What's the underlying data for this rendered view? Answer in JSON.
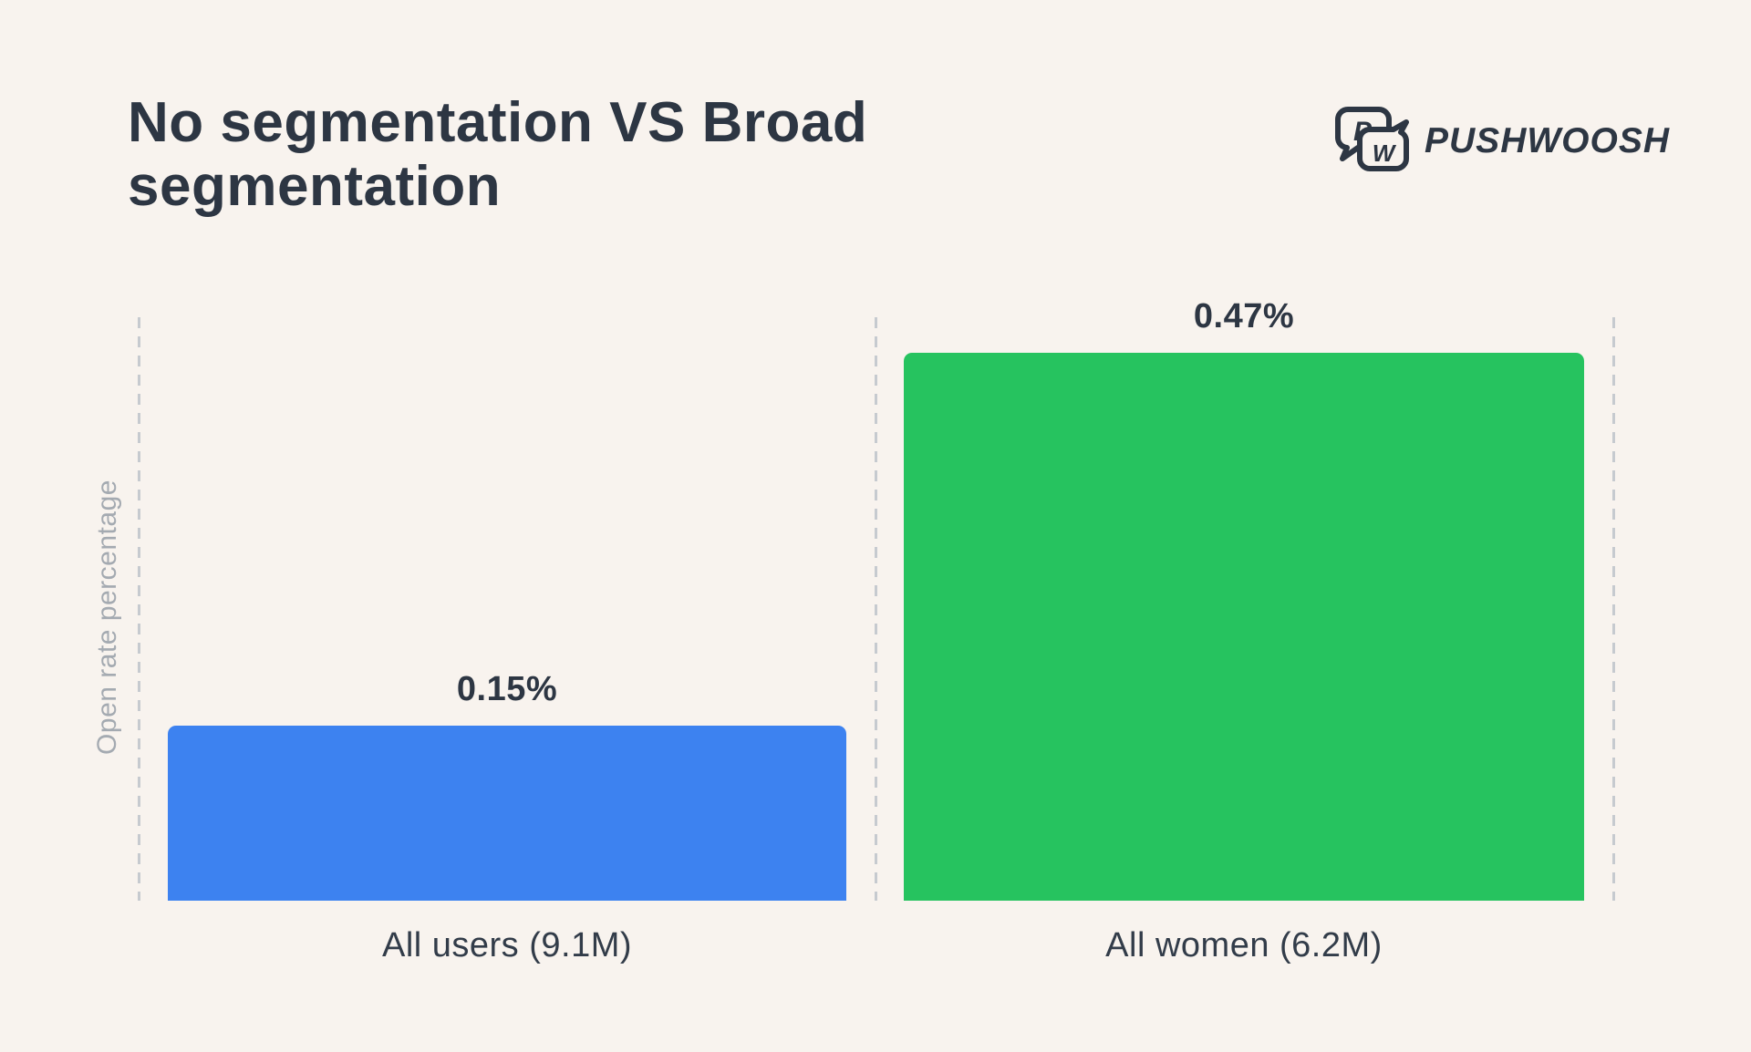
{
  "page": {
    "background": "#f8f3ee"
  },
  "header": {
    "title": "No segmentation VS Broad segmentation"
  },
  "logo": {
    "brand": "PUSHWOOSH",
    "icon_letters": {
      "p": "P",
      "w": "W"
    },
    "color": "#2d3643"
  },
  "chart_data": {
    "type": "bar",
    "title": "No segmentation VS Broad segmentation",
    "categories": [
      "All users (9.1M)",
      "All women (6.2M)"
    ],
    "values": [
      0.15,
      0.47
    ],
    "value_labels": [
      "0.15%",
      "0.47%"
    ],
    "bar_colors": [
      "#3d82f0",
      "#26c35f"
    ],
    "xlabel": "",
    "ylabel": "Open rate percentage",
    "ylim": [
      0,
      0.47
    ],
    "grid": "dashed vertical separators at left, middle, right",
    "legend": "none"
  }
}
